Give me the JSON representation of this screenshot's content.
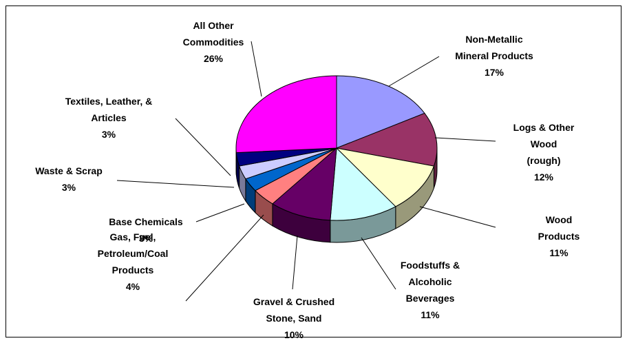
{
  "chart_data": {
    "type": "pie3d",
    "categories": [
      "Non-Metallic\nMineral Products",
      "Logs & Other Wood\n(rough)",
      "Wood Products",
      "Foodstuffs &\nAlcoholic\nBeverages",
      "Gravel & Crushed\nStone, Sand",
      "Gas, Fuel,\nPetroleum/Coal\nProducts",
      "Base Chemicals",
      "Waste & Scrap",
      "Textiles, Leather, &\nArticles",
      "All Other\nCommodities"
    ],
    "values": [
      17,
      12,
      11,
      11,
      10,
      4,
      3,
      3,
      3,
      26
    ],
    "value_labels": [
      "17%",
      "12%",
      "11%",
      "11%",
      "10%",
      "4%",
      "3%",
      "3%",
      "3%",
      "26%"
    ],
    "colors": [
      "#9999ff",
      "#993366",
      "#ffffcc",
      "#ccffff",
      "#660066",
      "#ff8080",
      "#0066cc",
      "#ccccff",
      "#000080",
      "#ff00ff"
    ]
  }
}
